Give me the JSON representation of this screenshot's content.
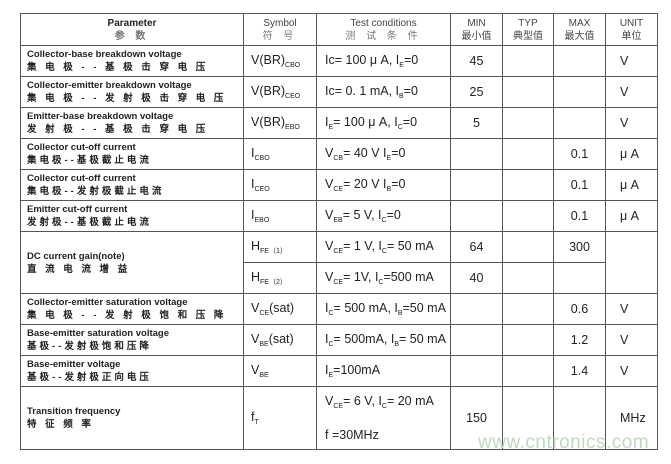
{
  "header": {
    "parameter": {
      "en": "Parameter",
      "zh": "参 数"
    },
    "symbol": {
      "en": "Symbol",
      "zh": "符 号"
    },
    "conditions": {
      "en": "Test conditions",
      "zh": "测 试 条 件"
    },
    "min": {
      "en": "MIN",
      "zh": "最小值"
    },
    "typ": {
      "en": "TYP",
      "zh": "典型值"
    },
    "max": {
      "en": "MAX",
      "zh": "最大值"
    },
    "unit": {
      "en": "UNIT",
      "zh": "单位"
    }
  },
  "rows": [
    {
      "en": "Collector-base breakdown voltage",
      "zh": "集 电 极 - - 基 极 击 穿 电 压",
      "lines": [
        {
          "symbol": [
            [
              "V(BR)",
              ""
            ],
            [
              "",
              "CBO"
            ]
          ],
          "cond": [
            [
              "Ic= 100 μ A,   I",
              ""
            ],
            [
              "",
              "E"
            ],
            [
              "=0",
              ""
            ]
          ],
          "min": "45",
          "typ": "",
          "max": ""
        }
      ],
      "unit": "V"
    },
    {
      "en": "Collector-emitter breakdown voltage",
      "zh": "集 电 极 - - 发 射 极 击 穿 电 压",
      "lines": [
        {
          "symbol": [
            [
              "V(BR)",
              ""
            ],
            [
              "",
              "CEO"
            ]
          ],
          "cond": [
            [
              "Ic= 0. 1 mA,   I",
              ""
            ],
            [
              "",
              "B"
            ],
            [
              "=0",
              ""
            ]
          ],
          "min": "25",
          "typ": "",
          "max": ""
        }
      ],
      "unit": "V"
    },
    {
      "en": "Emitter-base breakdown voltage",
      "zh": "发 射 极 - - 基 极 击 穿 电 压",
      "lines": [
        {
          "symbol": [
            [
              "V(BR)",
              ""
            ],
            [
              "",
              "EBO"
            ]
          ],
          "cond": [
            [
              "I",
              ""
            ],
            [
              "",
              "E"
            ],
            [
              "= 100 μ A,   I",
              ""
            ],
            [
              "",
              "C"
            ],
            [
              "=0",
              ""
            ]
          ],
          "min": "5",
          "typ": "",
          "max": ""
        }
      ],
      "unit": "V"
    },
    {
      "en": "Collector cut-off current",
      "zh": "集电极--基极截止电流",
      "lines": [
        {
          "symbol": [
            [
              "I",
              ""
            ],
            [
              "",
              "CBO"
            ]
          ],
          "cond": [
            [
              "V",
              ""
            ],
            [
              "",
              "CB"
            ],
            [
              "= 40   V    I",
              ""
            ],
            [
              "",
              "E"
            ],
            [
              "=0",
              ""
            ]
          ],
          "min": "",
          "typ": "",
          "max": "0.1"
        }
      ],
      "unit": "μ A"
    },
    {
      "en": "Collector cut-off current",
      "zh": "集电极--发射极截止电流",
      "lines": [
        {
          "symbol": [
            [
              "I",
              ""
            ],
            [
              "",
              "CEO"
            ]
          ],
          "cond": [
            [
              "V",
              ""
            ],
            [
              "",
              "CE"
            ],
            [
              "= 20   V    I",
              ""
            ],
            [
              "",
              "B"
            ],
            [
              "=0",
              ""
            ]
          ],
          "min": "",
          "typ": "",
          "max": "0.1"
        }
      ],
      "unit": "μ A"
    },
    {
      "en": "Emitter cut-off current",
      "zh": "发射极--基极截止电流",
      "lines": [
        {
          "symbol": [
            [
              "I",
              ""
            ],
            [
              "",
              "EBO"
            ]
          ],
          "cond": [
            [
              "V",
              ""
            ],
            [
              "",
              "EB"
            ],
            [
              "=   5   V,   I",
              ""
            ],
            [
              "",
              "C"
            ],
            [
              "=0",
              ""
            ]
          ],
          "min": "",
          "typ": "",
          "max": "0.1"
        }
      ],
      "unit": "μ A"
    },
    {
      "en": "DC current gain(note)",
      "zh": "直 流 电 流 增 益",
      "lines": [
        {
          "symbol": [
            [
              "H",
              ""
            ],
            [
              "",
              "FE（1）"
            ]
          ],
          "cond": [
            [
              "V",
              ""
            ],
            [
              "",
              "CE"
            ],
            [
              "=    1 V,   I",
              ""
            ],
            [
              "",
              "C"
            ],
            [
              "= 50 mA",
              ""
            ]
          ],
          "min": "64",
          "typ": "",
          "max": "300"
        },
        {
          "symbol": [
            [
              "H",
              ""
            ],
            [
              "",
              "FE（2）"
            ]
          ],
          "cond": [
            [
              "V",
              ""
            ],
            [
              "",
              "CE"
            ],
            [
              "=    1V,   I",
              ""
            ],
            [
              "",
              "C"
            ],
            [
              "=500 mA",
              ""
            ]
          ],
          "min": "40",
          "typ": "",
          "max": ""
        }
      ],
      "unit": ""
    },
    {
      "en": "Collector-emitter saturation voltage",
      "zh": "集 电 极 - - 发 射 极 饱 和 压 降",
      "lines": [
        {
          "symbol": [
            [
              "V",
              ""
            ],
            [
              "",
              "CE"
            ],
            [
              "(sat)",
              ""
            ]
          ],
          "cond": [
            [
              "I",
              ""
            ],
            [
              "",
              "C"
            ],
            [
              "= 500 mA, I",
              ""
            ],
            [
              "",
              "B"
            ],
            [
              "=50 mA",
              ""
            ]
          ],
          "min": "",
          "typ": "",
          "max": "0.6"
        }
      ],
      "unit": "V"
    },
    {
      "en": "Base-emitter saturation voltage",
      "zh": "基极--发射极饱和压降",
      "lines": [
        {
          "symbol": [
            [
              "V",
              ""
            ],
            [
              "",
              "BE"
            ],
            [
              "(sat)",
              ""
            ]
          ],
          "cond": [
            [
              "I",
              ""
            ],
            [
              "",
              "C"
            ],
            [
              "= 500mA, I",
              ""
            ],
            [
              "",
              "B"
            ],
            [
              "= 50 mA",
              ""
            ]
          ],
          "min": "",
          "typ": "",
          "max": "1.2"
        }
      ],
      "unit": "V"
    },
    {
      "en": "Base-emitter voltage",
      "zh": "基极--发射极正向电压",
      "lines": [
        {
          "symbol": [
            [
              "V",
              ""
            ],
            [
              "",
              "BE"
            ]
          ],
          "cond": [
            [
              "I",
              ""
            ],
            [
              "",
              "E"
            ],
            [
              "=100mA",
              ""
            ]
          ],
          "min": "",
          "typ": "",
          "max": "1.4"
        }
      ],
      "unit": "V"
    },
    {
      "en": "Transition frequency",
      "zh": "特 征 频 率",
      "lines": [
        {
          "symbol": [
            [
              "f",
              ""
            ],
            [
              "",
              "T"
            ]
          ],
          "cond": [
            [
              "V",
              ""
            ],
            [
              "",
              "CE"
            ],
            [
              "= 6 V,     I",
              ""
            ],
            [
              "",
              "C"
            ],
            [
              "= 20 mA",
              ""
            ]
          ],
          "cond2": [
            [
              "f =30MHz",
              ""
            ]
          ],
          "min": "150",
          "typ": "",
          "max": ""
        }
      ],
      "unit": "MHz"
    }
  ],
  "watermark": "www.cntronics.com",
  "colors": {
    "border": "#555555",
    "watermark": "#bfd9bf"
  }
}
